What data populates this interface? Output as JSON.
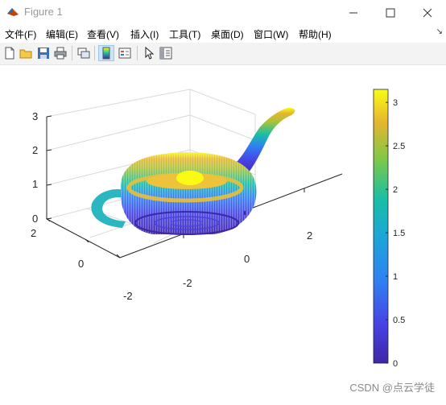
{
  "window": {
    "title": "Figure 1",
    "buttons": {
      "minimize": "minimize",
      "maximize": "maximize",
      "close": "close"
    }
  },
  "menu": {
    "items": [
      "文件(F)",
      "编辑(E)",
      "查看(V)",
      "插入(I)",
      "工具(T)",
      "桌面(D)",
      "窗口(W)",
      "帮助(H)"
    ],
    "overflow_arrow": "↘"
  },
  "toolbar": {
    "icons": [
      "new-figure-icon",
      "open-file-icon",
      "save-icon",
      "print-icon",
      "link-plot-icon",
      "colorbar-icon",
      "legend-icon",
      "select-pointer-icon",
      "property-inspector-icon"
    ],
    "active": [
      "colorbar-icon"
    ]
  },
  "colors": {
    "parula": [
      "#3e26a8",
      "#4742e3",
      "#2f80f3",
      "#1ca5d8",
      "#18bfa5",
      "#7bc84a",
      "#e6b62f",
      "#f9fb15"
    ]
  },
  "chart_data": {
    "type": "scatter3",
    "title": "",
    "x_ticks": [
      "-2",
      "0",
      "2"
    ],
    "y_ticks": [
      "-2",
      "0",
      "2"
    ],
    "z_ticks": [
      "0",
      "1",
      "2",
      "3"
    ],
    "xlim": [
      -3,
      3.5
    ],
    "ylim": [
      -2,
      2
    ],
    "zlim": [
      0,
      3.15
    ],
    "grid": true,
    "colorbar": {
      "placement": "right",
      "ticks": [
        "0",
        "0.5",
        "1",
        "1.5",
        "2",
        "2.5",
        "3"
      ],
      "range": [
        0,
        3.15
      ],
      "colormap": "parula"
    },
    "object": "teapot point cloud colored by z"
  },
  "watermark": "CSDN @点云学徒"
}
